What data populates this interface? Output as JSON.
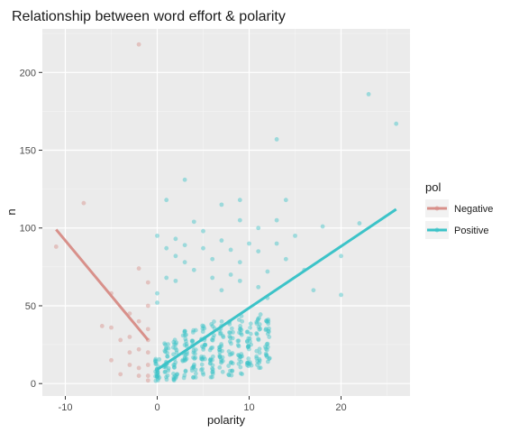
{
  "chart_data": {
    "type": "scatter",
    "title": "Relationship between word effort & polarity",
    "xlabel": "polarity",
    "ylabel": "n",
    "xlim": [
      -12.5,
      27.5
    ],
    "ylim": [
      -8,
      228
    ],
    "x_ticks": [
      -10,
      0,
      10,
      20
    ],
    "y_ticks": [
      0,
      50,
      100,
      150,
      200
    ],
    "grid": true,
    "legend": {
      "title": "pol",
      "placement": "right",
      "entries": [
        {
          "label": "Negative",
          "color": "#d8908a"
        },
        {
          "label": "Positive",
          "color": "#3cc3c8"
        }
      ]
    },
    "series": [
      {
        "name": "Negative",
        "color": "#d8908a",
        "points": [
          [
            -11,
            88
          ],
          [
            -8,
            116
          ],
          [
            -6,
            37
          ],
          [
            -5,
            58
          ],
          [
            -5,
            36
          ],
          [
            -5,
            15
          ],
          [
            -4,
            28
          ],
          [
            -4,
            6
          ],
          [
            -3,
            45
          ],
          [
            -3,
            30
          ],
          [
            -3,
            12
          ],
          [
            -3,
            20
          ],
          [
            -2,
            218
          ],
          [
            -2,
            74
          ],
          [
            -2,
            40
          ],
          [
            -2,
            22
          ],
          [
            -2,
            10
          ],
          [
            -2,
            5
          ],
          [
            -1,
            65
          ],
          [
            -1,
            50
          ],
          [
            -1,
            35
          ],
          [
            -1,
            28
          ],
          [
            -1,
            20
          ],
          [
            -1,
            12
          ],
          [
            -1,
            5
          ],
          [
            -1,
            2
          ]
        ],
        "trend": [
          [
            -11,
            99
          ],
          [
            -1,
            28
          ]
        ]
      },
      {
        "name": "Positive",
        "color": "#3cc3c8",
        "points": [
          [
            0,
            95
          ],
          [
            0,
            58
          ],
          [
            0,
            52
          ],
          [
            1,
            118
          ],
          [
            1,
            87
          ],
          [
            1,
            68
          ],
          [
            2,
            93
          ],
          [
            2,
            82
          ],
          [
            2,
            66
          ],
          [
            3,
            131
          ],
          [
            3,
            89
          ],
          [
            3,
            78
          ],
          [
            4,
            104
          ],
          [
            4,
            73
          ],
          [
            5,
            98
          ],
          [
            5,
            87
          ],
          [
            6,
            68
          ],
          [
            6,
            80
          ],
          [
            7,
            115
          ],
          [
            7,
            92
          ],
          [
            7,
            60
          ],
          [
            8,
            86
          ],
          [
            8,
            70
          ],
          [
            9,
            118
          ],
          [
            9,
            105
          ],
          [
            9,
            78
          ],
          [
            9,
            66
          ],
          [
            10,
            90
          ],
          [
            11,
            100
          ],
          [
            11,
            85
          ],
          [
            11,
            62
          ],
          [
            12,
            72
          ],
          [
            12,
            55
          ],
          [
            13,
            157
          ],
          [
            13,
            105
          ],
          [
            13,
            90
          ],
          [
            14,
            118
          ],
          [
            14,
            80
          ],
          [
            15,
            95
          ],
          [
            16,
            73
          ],
          [
            17,
            60
          ],
          [
            18,
            101
          ],
          [
            20,
            82
          ],
          [
            20,
            57
          ],
          [
            22,
            103
          ],
          [
            23,
            186
          ],
          [
            26,
            167
          ]
        ],
        "trend": [
          [
            0,
            9
          ],
          [
            26,
            112
          ]
        ]
      }
    ]
  }
}
